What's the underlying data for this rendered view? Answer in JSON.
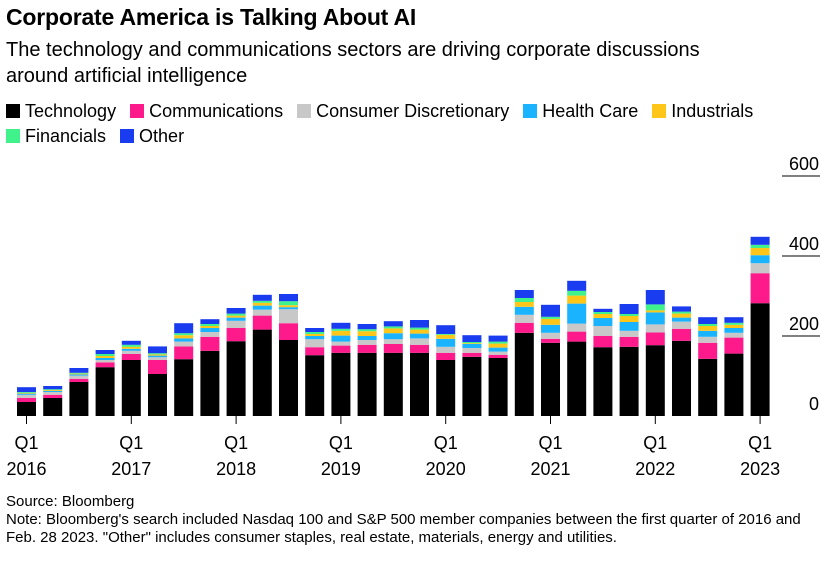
{
  "header": {
    "title": "Corporate America is Talking About AI",
    "subtitle": "The technology and communications sectors are driving corporate discussions around artificial intelligence"
  },
  "footer": {
    "source": "Source: Bloomberg",
    "note": "Note: Bloomberg's search included Nasdaq 100 and S&P 500 member companies between the first quarter of 2016 and Feb. 28 2023. \"Other\" includes consumer staples, real estate, materials, energy and utilities."
  },
  "chart_data": {
    "type": "bar",
    "stacked": true,
    "title": "Corporate America is Talking About AI",
    "subtitle": "The technology and communications sectors are driving corporate discussions around artificial intelligence",
    "xlabel": "",
    "ylabel": "",
    "ylim": [
      0,
      600
    ],
    "yticks": [
      0,
      200,
      400,
      600
    ],
    "y_axis_position": "right",
    "grid": false,
    "legend_position": "top-left",
    "categories": [
      "Q1 2016",
      "Q2 2016",
      "Q3 2016",
      "Q4 2016",
      "Q1 2017",
      "Q2 2017",
      "Q3 2017",
      "Q4 2017",
      "Q1 2018",
      "Q2 2018",
      "Q3 2018",
      "Q4 2018",
      "Q1 2019",
      "Q2 2019",
      "Q3 2019",
      "Q4 2019",
      "Q1 2020",
      "Q2 2020",
      "Q3 2020",
      "Q4 2020",
      "Q1 2021",
      "Q2 2021",
      "Q3 2021",
      "Q4 2021",
      "Q1 2022",
      "Q2 2022",
      "Q3 2022",
      "Q4 2022",
      "Q1 2023"
    ],
    "x_tick_labels": [
      {
        "index": 0,
        "top": "Q1",
        "bottom": "2016"
      },
      {
        "index": 4,
        "top": "Q1",
        "bottom": "2017"
      },
      {
        "index": 8,
        "top": "Q1",
        "bottom": "2018"
      },
      {
        "index": 12,
        "top": "Q1",
        "bottom": "2019"
      },
      {
        "index": 16,
        "top": "Q1",
        "bottom": "2020"
      },
      {
        "index": 20,
        "top": "Q1",
        "bottom": "2021"
      },
      {
        "index": 24,
        "top": "Q1",
        "bottom": "2022"
      },
      {
        "index": 28,
        "top": "Q1",
        "bottom": "2023"
      }
    ],
    "series": [
      {
        "name": "Technology",
        "color": "#000000",
        "values": [
          35,
          45,
          85,
          122,
          140,
          105,
          142,
          163,
          187,
          216,
          190,
          152,
          158,
          158,
          158,
          158,
          140,
          148,
          145,
          208,
          183,
          186,
          172,
          173,
          177,
          188,
          143,
          156,
          282
        ]
      },
      {
        "name": "Communications",
        "color": "#ff1a8c",
        "values": [
          10,
          8,
          8,
          12,
          15,
          35,
          32,
          35,
          33,
          35,
          42,
          20,
          18,
          20,
          22,
          20,
          18,
          10,
          8,
          25,
          10,
          25,
          28,
          25,
          32,
          30,
          40,
          40,
          75
        ]
      },
      {
        "name": "Consumer Discretionary",
        "color": "#c8c8c8",
        "values": [
          8,
          7,
          8,
          6,
          8,
          7,
          12,
          12,
          18,
          15,
          35,
          20,
          10,
          12,
          12,
          16,
          15,
          12,
          8,
          20,
          15,
          20,
          25,
          15,
          20,
          18,
          15,
          12,
          25
        ]
      },
      {
        "name": "Health Care",
        "color": "#1ab3ff",
        "values": [
          3,
          3,
          3,
          5,
          5,
          4,
          8,
          10,
          8,
          10,
          5,
          8,
          15,
          10,
          15,
          12,
          20,
          10,
          10,
          20,
          20,
          50,
          20,
          22,
          30,
          10,
          15,
          12,
          20
        ]
      },
      {
        "name": "Industrials",
        "color": "#ffc61a",
        "values": [
          2,
          2,
          2,
          5,
          5,
          3,
          8,
          5,
          5,
          7,
          5,
          5,
          12,
          12,
          12,
          10,
          10,
          2,
          10,
          12,
          15,
          20,
          10,
          15,
          5,
          10,
          12,
          8,
          18
        ]
      },
      {
        "name": "Financials",
        "color": "#3ff28c",
        "values": [
          2,
          2,
          2,
          5,
          5,
          3,
          5,
          5,
          5,
          5,
          10,
          5,
          5,
          5,
          5,
          5,
          2,
          3,
          5,
          10,
          5,
          12,
          5,
          5,
          15,
          5,
          5,
          5,
          8
        ]
      },
      {
        "name": "Other",
        "color": "#1a3cf0",
        "values": [
          12,
          8,
          12,
          10,
          10,
          17,
          25,
          12,
          14,
          15,
          18,
          10,
          15,
          13,
          13,
          19,
          22,
          17,
          15,
          20,
          30,
          25,
          8,
          25,
          36,
          13,
          17,
          14,
          20
        ]
      }
    ]
  }
}
